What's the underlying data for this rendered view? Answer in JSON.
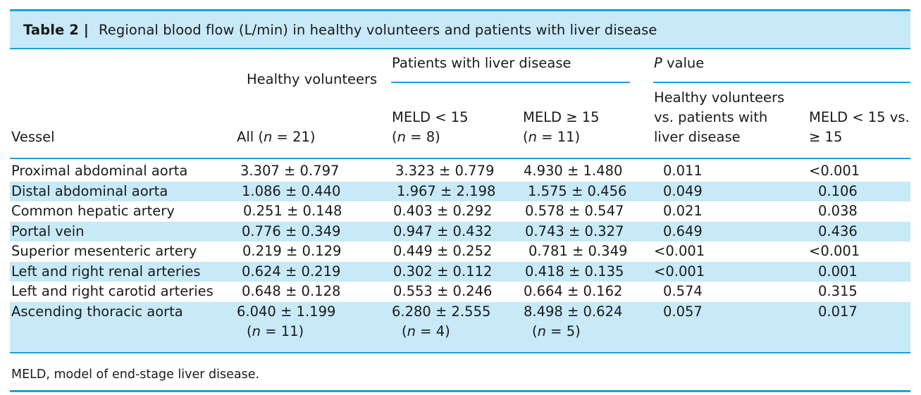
{
  "caption": {
    "label": "Table 2 |",
    "text": "Regional blood flow (L/min) in healthy volunteers and patients with liver disease"
  },
  "header": {
    "vessel": "Vessel",
    "healthy": "Healthy volunteers",
    "healthy_all": "All (n = 21)",
    "patients": "Patients with liver disease",
    "meld_lt_line1": "MELD < 15",
    "meld_lt_line2": "(n = 8)",
    "meld_ge_line1": "MELD ≥ 15",
    "meld_ge_line2": "(n = 11)",
    "pvalue": "P value",
    "pv_hv_line1": "Healthy volunteers",
    "pv_hv_line2": "vs. patients with",
    "pv_hv_line3": "liver disease",
    "pv_meld_line1": "MELD < 15 vs.",
    "pv_meld_line2": "≥ 15"
  },
  "rows": [
    {
      "vessel": "Proximal abdominal aorta",
      "all": "3.307 ± 0.797",
      "lt15": "3.323 ± 0.779",
      "ge15": "4.930 ± 1.480",
      "p1": "0.011",
      "p2": "<0.001"
    },
    {
      "vessel": "Distal abdominal aorta",
      "all": "1.086 ± 0.440",
      "lt15": "1.967 ± 2.198",
      "ge15": "1.575 ± 0.456",
      "p1": "0.049",
      "p2": "0.106"
    },
    {
      "vessel": "Common hepatic artery",
      "all": "0.251 ± 0.148",
      "lt15": "0.403 ± 0.292",
      "ge15": "0.578 ± 0.547",
      "p1": "0.021",
      "p2": "0.038"
    },
    {
      "vessel": "Portal vein",
      "all": "0.776 ± 0.349",
      "lt15": "0.947 ± 0.432",
      "ge15": "0.743 ± 0.327",
      "p1": "0.649",
      "p2": "0.436"
    },
    {
      "vessel": "Superior mesenteric artery",
      "all": "0.219 ± 0.129",
      "lt15": "0.449 ± 0.252",
      "ge15": "0.781 ± 0.349",
      "p1": "<0.001",
      "p2": "<0.001"
    },
    {
      "vessel": "Left and right renal arteries",
      "all": "0.624 ± 0.219",
      "lt15": "0.302 ± 0.112",
      "ge15": "0.418 ± 0.135",
      "p1": "<0.001",
      "p2": "0.001"
    },
    {
      "vessel": "Left and right carotid arteries",
      "all": "0.648 ± 0.128",
      "lt15": "0.553 ± 0.246",
      "ge15": "0.664 ± 0.162",
      "p1": "0.574",
      "p2": "0.315"
    },
    {
      "vessel": "Ascending thoracic aorta",
      "all": "6.040 ± 1.199",
      "all_n": "(n = 11)",
      "lt15": "6.280 ± 2.555",
      "lt15_n": "(n = 4)",
      "ge15": "8.498 ± 0.624",
      "ge15_n": "(n = 5)",
      "p1": "0.057",
      "p2": "0.017"
    }
  ],
  "footnote": "MELD, model of end-stage liver disease.",
  "colors": {
    "rule": "#1aa3d9",
    "shade": "#c7e9f8"
  }
}
